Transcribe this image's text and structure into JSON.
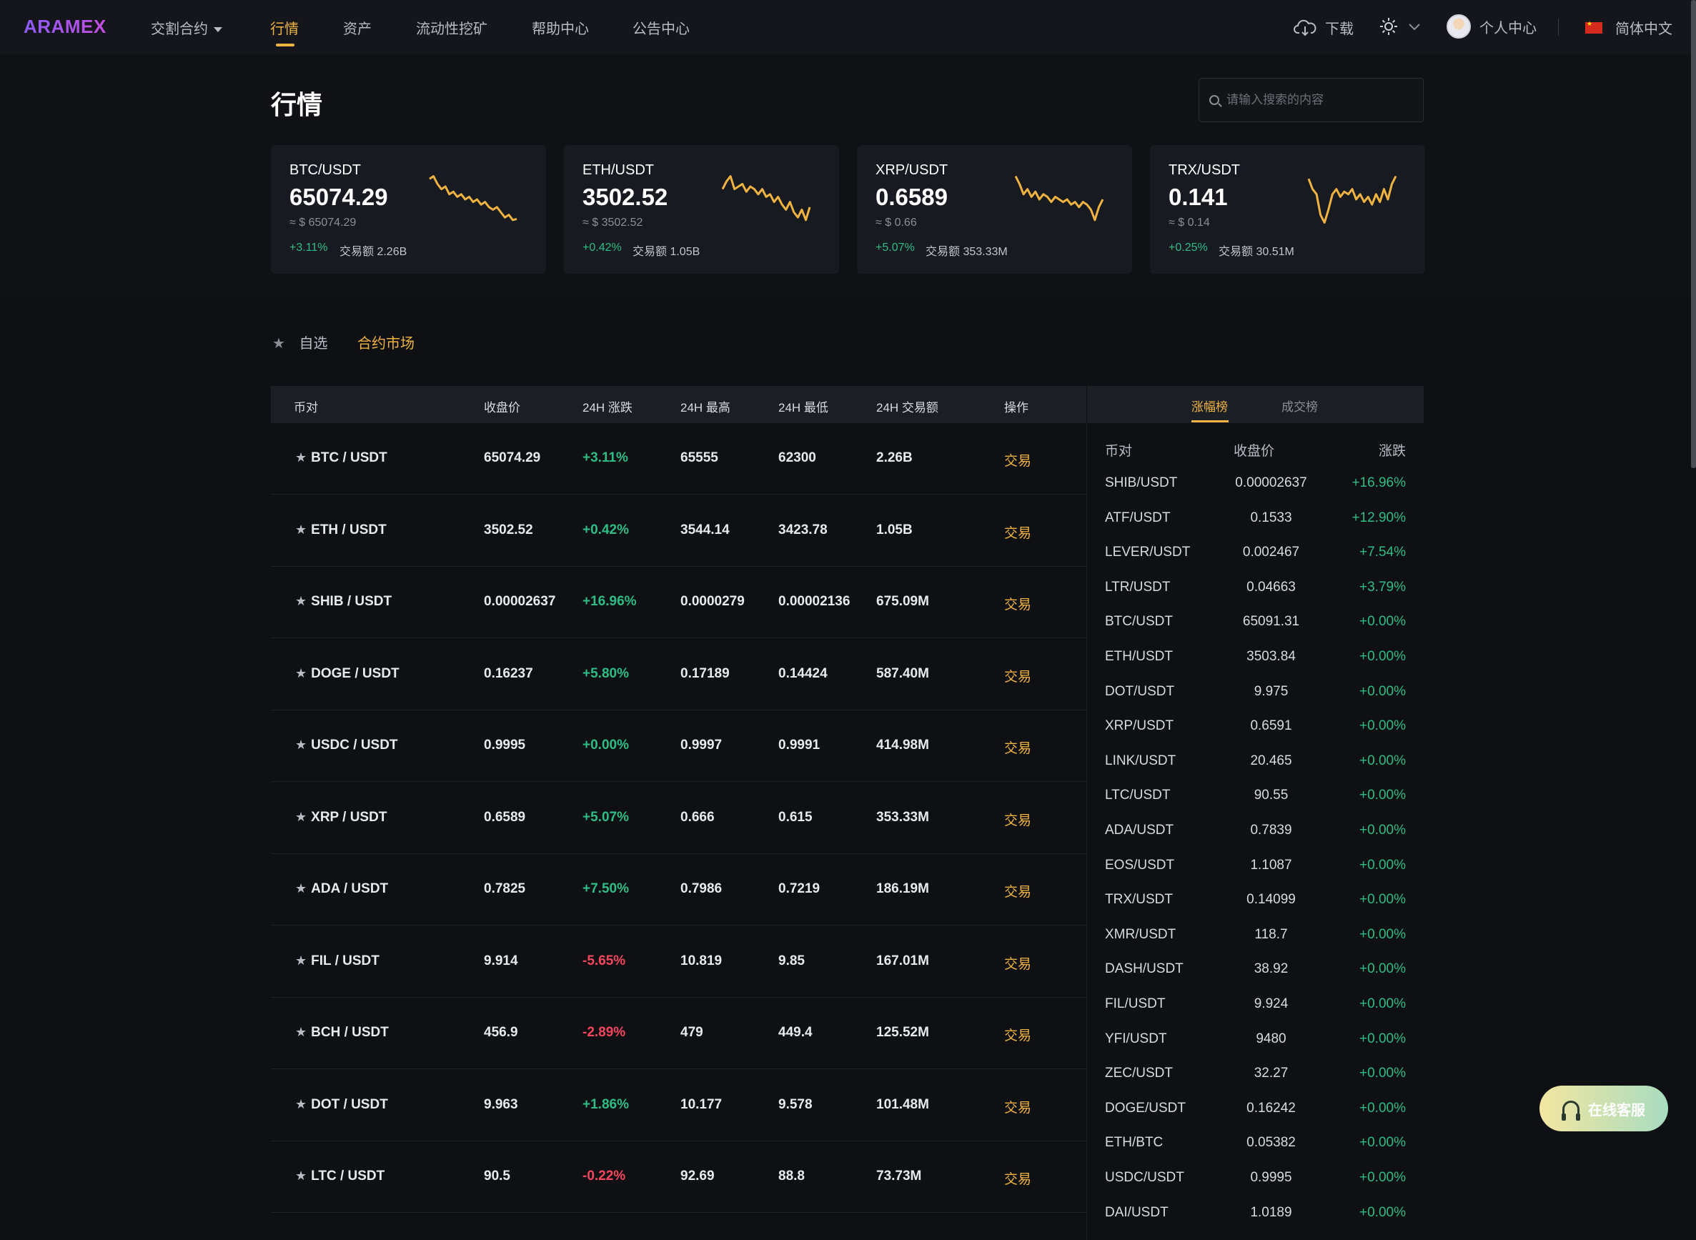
{
  "nav": {
    "logo": "ARAMEX",
    "items": [
      {
        "label": "交割合约",
        "has_caret": true
      },
      {
        "label": "行情",
        "active": true
      },
      {
        "label": "资产"
      },
      {
        "label": "流动性挖矿"
      },
      {
        "label": "帮助中心"
      },
      {
        "label": "公告中心"
      }
    ],
    "download": "下载",
    "user_center": "个人中心",
    "language": "简体中文"
  },
  "page": {
    "title": "行情",
    "search_placeholder": "请输入搜索的内容"
  },
  "tickers": [
    {
      "pair": "BTC/USDT",
      "price": "65074.29",
      "usd": "≈ $ 65074.29",
      "change": "+3.11%",
      "volume": "交易额 2.26B",
      "spark": [
        0.9,
        0.95,
        0.8,
        0.7,
        0.75,
        0.6,
        0.65,
        0.55,
        0.6,
        0.5,
        0.55,
        0.45,
        0.5,
        0.4,
        0.45,
        0.35,
        0.3,
        0.35,
        0.25,
        0.15,
        0.2,
        0.1,
        0.12
      ]
    },
    {
      "pair": "ETH/USDT",
      "price": "3502.52",
      "usd": "≈ $ 3502.52",
      "change": "+0.42%",
      "volume": "交易额 1.05B",
      "spark": [
        0.7,
        0.85,
        0.95,
        0.7,
        0.75,
        0.8,
        0.65,
        0.75,
        0.7,
        0.6,
        0.7,
        0.55,
        0.6,
        0.45,
        0.55,
        0.4,
        0.3,
        0.45,
        0.25,
        0.15,
        0.3,
        0.1,
        0.35
      ]
    },
    {
      "pair": "XRP/USDT",
      "price": "0.6589",
      "usd": "≈ $ 0.66",
      "change": "+5.07%",
      "volume": "交易额 353.33M",
      "spark": [
        0.95,
        0.8,
        0.6,
        0.7,
        0.55,
        0.65,
        0.5,
        0.6,
        0.55,
        0.45,
        0.55,
        0.5,
        0.45,
        0.5,
        0.4,
        0.45,
        0.35,
        0.45,
        0.4,
        0.3,
        0.1,
        0.35,
        0.5
      ]
    },
    {
      "pair": "TRX/USDT",
      "price": "0.141",
      "usd": "≈ $ 0.14",
      "change": "+0.25%",
      "volume": "交易额 30.51M",
      "spark": [
        0.9,
        0.7,
        0.6,
        0.2,
        0.05,
        0.3,
        0.6,
        0.7,
        0.55,
        0.65,
        0.6,
        0.7,
        0.5,
        0.6,
        0.45,
        0.55,
        0.4,
        0.6,
        0.45,
        0.7,
        0.5,
        0.8,
        0.95
      ]
    }
  ],
  "tabs": {
    "favorites": "自选",
    "contract": "合约市场"
  },
  "table": {
    "headers": [
      "币对",
      "收盘价",
      "24H 涨跌",
      "24H 最高",
      "24H 最低",
      "24H 交易额",
      "操作"
    ],
    "trade_label": "交易",
    "rows": [
      {
        "pair": "BTC / USDT",
        "close": "65074.29",
        "change": "+3.11%",
        "high": "65555",
        "low": "62300",
        "volume": "2.26B",
        "dir": "pos"
      },
      {
        "pair": "ETH / USDT",
        "close": "3502.52",
        "change": "+0.42%",
        "high": "3544.14",
        "low": "3423.78",
        "volume": "1.05B",
        "dir": "pos"
      },
      {
        "pair": "SHIB / USDT",
        "close": "0.00002637",
        "change": "+16.96%",
        "high": "0.0000279",
        "low": "0.00002136",
        "volume": "675.09M",
        "dir": "pos"
      },
      {
        "pair": "DOGE / USDT",
        "close": "0.16237",
        "change": "+5.80%",
        "high": "0.17189",
        "low": "0.14424",
        "volume": "587.40M",
        "dir": "pos"
      },
      {
        "pair": "USDC / USDT",
        "close": "0.9995",
        "change": "+0.00%",
        "high": "0.9997",
        "low": "0.9991",
        "volume": "414.98M",
        "dir": "pos"
      },
      {
        "pair": "XRP / USDT",
        "close": "0.6589",
        "change": "+5.07%",
        "high": "0.666",
        "low": "0.615",
        "volume": "353.33M",
        "dir": "pos"
      },
      {
        "pair": "ADA / USDT",
        "close": "0.7825",
        "change": "+7.50%",
        "high": "0.7986",
        "low": "0.7219",
        "volume": "186.19M",
        "dir": "pos"
      },
      {
        "pair": "FIL / USDT",
        "close": "9.914",
        "change": "-5.65%",
        "high": "10.819",
        "low": "9.85",
        "volume": "167.01M",
        "dir": "neg"
      },
      {
        "pair": "BCH / USDT",
        "close": "456.9",
        "change": "-2.89%",
        "high": "479",
        "low": "449.4",
        "volume": "125.52M",
        "dir": "neg"
      },
      {
        "pair": "DOT / USDT",
        "close": "9.963",
        "change": "+1.86%",
        "high": "10.177",
        "low": "9.578",
        "volume": "101.48M",
        "dir": "pos"
      },
      {
        "pair": "LTC / USDT",
        "close": "90.5",
        "change": "-0.22%",
        "high": "92.69",
        "low": "88.8",
        "volume": "73.73M",
        "dir": "neg"
      }
    ]
  },
  "ranking": {
    "tabs": [
      "涨幅榜",
      "成交榜"
    ],
    "headers": [
      "币对",
      "收盘价",
      "涨跌"
    ],
    "rows": [
      {
        "pair": "SHIB/USDT",
        "close": "0.00002637",
        "change": "+16.96%"
      },
      {
        "pair": "ATF/USDT",
        "close": "0.1533",
        "change": "+12.90%"
      },
      {
        "pair": "LEVER/USDT",
        "close": "0.002467",
        "change": "+7.54%"
      },
      {
        "pair": "LTR/USDT",
        "close": "0.04663",
        "change": "+3.79%"
      },
      {
        "pair": "BTC/USDT",
        "close": "65091.31",
        "change": "+0.00%"
      },
      {
        "pair": "ETH/USDT",
        "close": "3503.84",
        "change": "+0.00%"
      },
      {
        "pair": "DOT/USDT",
        "close": "9.975",
        "change": "+0.00%"
      },
      {
        "pair": "XRP/USDT",
        "close": "0.6591",
        "change": "+0.00%"
      },
      {
        "pair": "LINK/USDT",
        "close": "20.465",
        "change": "+0.00%"
      },
      {
        "pair": "LTC/USDT",
        "close": "90.55",
        "change": "+0.00%"
      },
      {
        "pair": "ADA/USDT",
        "close": "0.7839",
        "change": "+0.00%"
      },
      {
        "pair": "EOS/USDT",
        "close": "1.1087",
        "change": "+0.00%"
      },
      {
        "pair": "TRX/USDT",
        "close": "0.14099",
        "change": "+0.00%"
      },
      {
        "pair": "XMR/USDT",
        "close": "118.7",
        "change": "+0.00%"
      },
      {
        "pair": "DASH/USDT",
        "close": "38.92",
        "change": "+0.00%"
      },
      {
        "pair": "FIL/USDT",
        "close": "9.924",
        "change": "+0.00%"
      },
      {
        "pair": "YFI/USDT",
        "close": "9480",
        "change": "+0.00%"
      },
      {
        "pair": "ZEC/USDT",
        "close": "32.27",
        "change": "+0.00%"
      },
      {
        "pair": "DOGE/USDT",
        "close": "0.16242",
        "change": "+0.00%"
      },
      {
        "pair": "ETH/BTC",
        "close": "0.05382",
        "change": "+0.00%"
      },
      {
        "pair": "USDC/USDT",
        "close": "0.9995",
        "change": "+0.00%"
      },
      {
        "pair": "DAI/USDT",
        "close": "1.0189",
        "change": "+0.00%"
      }
    ]
  },
  "support_button": "在线客服",
  "colors": {
    "accent": "#f0b341",
    "up": "#2ebd85",
    "down": "#f6465d",
    "bg": "#0e1014",
    "panel": "#171a20"
  }
}
